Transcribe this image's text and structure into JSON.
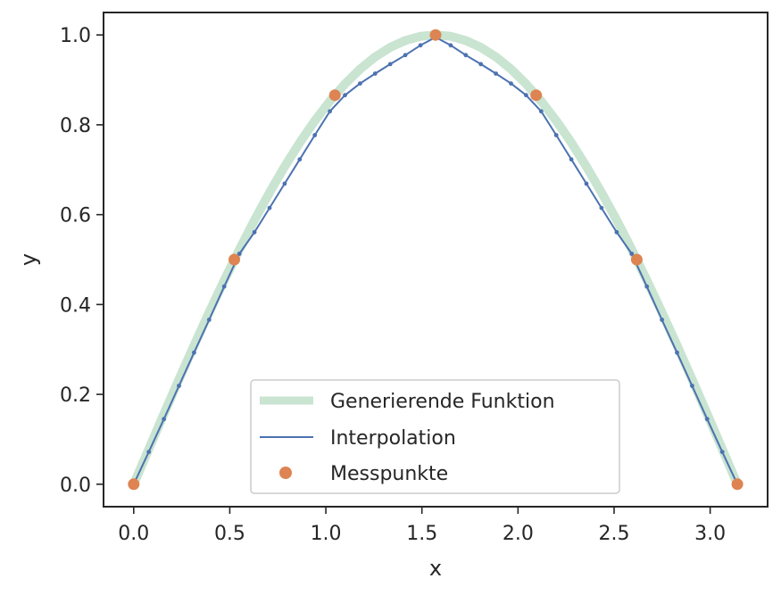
{
  "chart_data": {
    "type": "line",
    "xlabel": "x",
    "ylabel": "y",
    "xlim": [
      -0.157,
      3.299
    ],
    "ylim": [
      -0.05,
      1.05
    ],
    "x_ticks": [
      "0.0",
      "0.5",
      "1.0",
      "1.5",
      "2.0",
      "2.5",
      "3.0"
    ],
    "y_ticks": [
      "0.0",
      "0.2",
      "0.4",
      "0.6",
      "0.8",
      "1.0"
    ],
    "grid": false,
    "legend_position": "bottom-center",
    "series": [
      {
        "name": "Generierende Funktion",
        "kind": "thick-line",
        "color": "#c9e4d1",
        "x": [
          0,
          0.0785,
          0.157,
          0.2356,
          0.3142,
          0.3927,
          0.4712,
          0.5498,
          0.6283,
          0.7069,
          0.7854,
          0.864,
          0.9425,
          1.021,
          1.0996,
          1.1781,
          1.2566,
          1.3352,
          1.4137,
          1.4923,
          1.5708,
          1.6493,
          1.7279,
          1.8064,
          1.885,
          1.9635,
          2.042,
          2.1206,
          2.1991,
          2.2777,
          2.3562,
          2.4347,
          2.5133,
          2.5918,
          2.6704,
          2.7489,
          2.8274,
          2.906,
          2.9845,
          3.063,
          3.1416
        ],
        "y": [
          0,
          0.0785,
          0.1564,
          0.2334,
          0.309,
          0.3827,
          0.454,
          0.5225,
          0.5878,
          0.6494,
          0.7071,
          0.7604,
          0.809,
          0.8526,
          0.891,
          0.9239,
          0.9511,
          0.9724,
          0.9877,
          0.9969,
          1.0,
          0.9969,
          0.9877,
          0.9724,
          0.9511,
          0.9239,
          0.891,
          0.8526,
          0.809,
          0.7604,
          0.7071,
          0.6494,
          0.5878,
          0.5225,
          0.454,
          0.3827,
          0.309,
          0.2334,
          0.1564,
          0.0785,
          0
        ]
      },
      {
        "name": "Interpolation",
        "kind": "line-with-small-markers",
        "color": "#4c72b0",
        "x": [
          0.0,
          0.0785,
          0.157,
          0.2356,
          0.3142,
          0.3927,
          0.4712,
          0.5498,
          0.6283,
          0.7069,
          0.7854,
          0.864,
          0.9425,
          1.021,
          1.0996,
          1.1781,
          1.2566,
          1.3352,
          1.4137,
          1.4923,
          1.5708,
          1.6493,
          1.7279,
          1.8064,
          1.885,
          1.9635,
          2.042,
          2.1206,
          2.1991,
          2.2777,
          2.3562,
          2.4347,
          2.5133,
          2.5918,
          2.6704,
          2.7489,
          2.8274,
          2.906,
          2.9845,
          3.063,
          3.1416
        ],
        "y": [
          0.0,
          0.072,
          0.145,
          0.219,
          0.293,
          0.366,
          0.44,
          0.513,
          0.561,
          0.615,
          0.669,
          0.723,
          0.777,
          0.83,
          0.866,
          0.892,
          0.914,
          0.935,
          0.955,
          0.977,
          0.995,
          0.977,
          0.955,
          0.935,
          0.914,
          0.892,
          0.866,
          0.83,
          0.777,
          0.723,
          0.669,
          0.615,
          0.561,
          0.513,
          0.44,
          0.366,
          0.293,
          0.219,
          0.145,
          0.072,
          0.0
        ]
      },
      {
        "name": "Messpunkte",
        "kind": "scatter",
        "color": "#dd8452",
        "x": [
          0.0,
          0.5236,
          1.0472,
          1.5708,
          2.0944,
          2.618,
          3.1416
        ],
        "y": [
          0.0,
          0.5,
          0.866,
          1.0,
          0.866,
          0.5,
          0.0
        ]
      }
    ]
  }
}
